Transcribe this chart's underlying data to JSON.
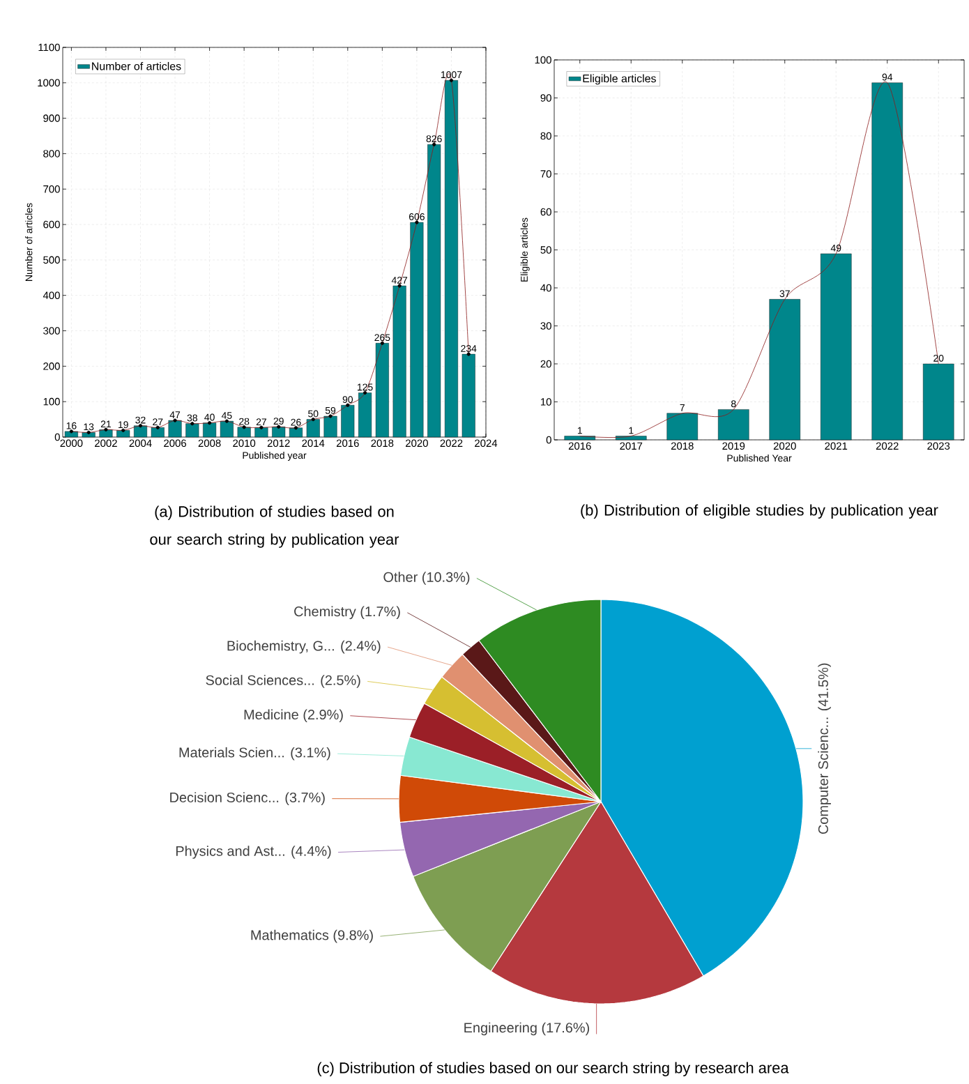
{
  "chart_data": [
    {
      "type": "bar",
      "x": [
        2000,
        2001,
        2002,
        2003,
        2004,
        2005,
        2006,
        2007,
        2008,
        2009,
        2010,
        2011,
        2012,
        2013,
        2014,
        2015,
        2016,
        2017,
        2018,
        2019,
        2020,
        2021,
        2022,
        2023
      ],
      "xlim": [
        1999.5,
        2024
      ],
      "xticks": [
        2000,
        2002,
        2004,
        2006,
        2008,
        2010,
        2012,
        2014,
        2016,
        2018,
        2020,
        2022,
        2024
      ],
      "ylim": [
        0,
        1100
      ],
      "yticks": [
        0,
        100,
        200,
        300,
        400,
        500,
        600,
        700,
        800,
        900,
        1000,
        1100
      ],
      "xlabel": "Published year",
      "ylabel": "Number of articles",
      "grid": true,
      "legend": "top left",
      "annotations": [
        "(a) Distribution of studies based on our search string by publication year"
      ],
      "series": [
        {
          "name": "Number of articles",
          "color": "#00868b",
          "values": [
            16,
            13,
            21,
            19,
            32,
            27,
            47,
            38,
            40,
            45,
            28,
            27,
            29,
            26,
            50,
            59,
            90,
            125,
            265,
            427,
            606,
            826,
            1007,
            234
          ],
          "value_labels": [
            "16",
            "13",
            "21",
            "19",
            "32",
            "27",
            "47",
            "38",
            "40",
            "45",
            "28",
            "27",
            "29",
            "26",
            "50",
            "59",
            "90",
            "125",
            "265",
            "427",
            "606",
            "826",
            "1007",
            "234"
          ]
        },
        {
          "type": "line",
          "color": "#8b1a1a",
          "marker": "circle",
          "values": [
            16,
            13,
            21,
            19,
            32,
            27,
            47,
            38,
            40,
            45,
            28,
            27,
            29,
            26,
            50,
            59,
            90,
            125,
            265,
            427,
            606,
            826,
            1007,
            234
          ]
        }
      ]
    },
    {
      "type": "bar",
      "categories": [
        "2016",
        "2017",
        "2018",
        "2019",
        "2020",
        "2021",
        "2022",
        "2023"
      ],
      "ylim": [
        0,
        100
      ],
      "yticks": [
        0,
        10,
        20,
        30,
        40,
        50,
        60,
        70,
        80,
        90,
        100
      ],
      "xlabel": "Published Year",
      "ylabel": "Eligible articles",
      "grid": true,
      "legend": "top left",
      "annotations": [
        "(b) Distribution of eligible studies by publication year"
      ],
      "series": [
        {
          "name": "Eligible articles",
          "color": "#00868b",
          "values": [
            1,
            1,
            7,
            8,
            37,
            49,
            94,
            20
          ],
          "value_labels": [
            "1",
            "1",
            "7",
            "8",
            "37",
            "49",
            "94",
            "20"
          ]
        },
        {
          "type": "line",
          "color": "#8b1a1a",
          "values": [
            1,
            1,
            7,
            8,
            37,
            49,
            94,
            20
          ]
        }
      ]
    },
    {
      "type": "pie",
      "categories": [
        "Computer Scienc... (41.5%)",
        "Engineering (17.6%)",
        "Mathematics (9.8%)",
        "Physics and Ast... (4.4%)",
        "Decision Scienc... (3.7%)",
        "Materials Scien... (3.1%)",
        "Medicine (2.9%)",
        "Social Sciences... (2.5%)",
        "Biochemistry, G... (2.4%)",
        "Chemistry (1.7%)",
        "Other (10.3%)"
      ],
      "values": [
        41.5,
        17.6,
        9.8,
        4.4,
        3.7,
        3.1,
        2.9,
        2.5,
        2.4,
        1.7,
        10.3
      ],
      "colors": [
        "#00a0d0",
        "#b5393e",
        "#7e9e52",
        "#9467b0",
        "#d04a07",
        "#88e8d2",
        "#9b1f27",
        "#d6bf31",
        "#e09070",
        "#5a1818",
        "#2e8b22"
      ],
      "annotations": [
        "(c) Distribution of studies based on our search string by research area"
      ]
    }
  ]
}
